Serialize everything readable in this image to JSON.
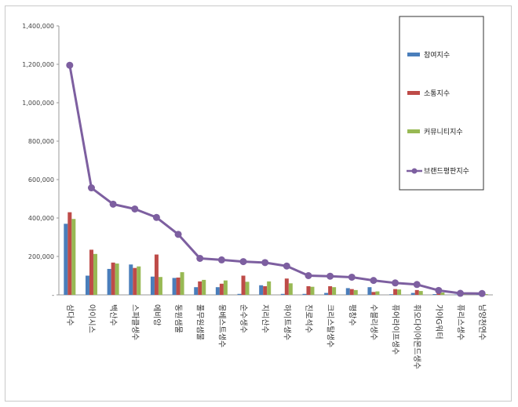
{
  "chart_data": {
    "type": "bar",
    "title": "",
    "xlabel": "",
    "ylabel": "",
    "ylim": [
      0,
      1400000
    ],
    "yticks": [
      0,
      200000,
      400000,
      600000,
      800000,
      1000000,
      1200000,
      1400000
    ],
    "ytick_labels": [
      "-",
      "200,000",
      "400,000",
      "600,000",
      "800,000",
      "1,000,000",
      "1,200,000",
      "1,400,000"
    ],
    "grid": false,
    "legend_position": "top-right",
    "categories": [
      "삼다수",
      "아이시스",
      "백산수",
      "스파클생수",
      "에비앙",
      "동원샘물",
      "풀무원샘물",
      "몽베스트생수",
      "순수생수",
      "지리산수",
      "하이트생수",
      "진로석수",
      "크리스탈생수",
      "평창수",
      "수블리생수",
      "퓨어라이프생수",
      "휘오다이아몬드생수",
      "가야G워터",
      "퓨리스생수",
      "남양천연수"
    ],
    "series": [
      {
        "name": "참여지수",
        "type": "bar",
        "color": "#4a7ebb",
        "values": [
          370000,
          100000,
          135000,
          158000,
          95000,
          88000,
          40000,
          40000,
          5000,
          50000,
          5000,
          5000,
          10000,
          35000,
          40000,
          3000,
          10000,
          4000,
          2000,
          2000
        ]
      },
      {
        "name": "소통지수",
        "type": "bar",
        "color": "#be4b48",
        "values": [
          430000,
          235000,
          168000,
          140000,
          210000,
          90000,
          70000,
          58000,
          100000,
          45000,
          85000,
          45000,
          45000,
          30000,
          15000,
          30000,
          25000,
          10000,
          5000,
          3000
        ]
      },
      {
        "name": "커뮤니티지수",
        "type": "bar",
        "color": "#98b954",
        "values": [
          395000,
          213000,
          163000,
          148000,
          93000,
          118000,
          78000,
          75000,
          68000,
          70000,
          60000,
          42000,
          40000,
          25000,
          18000,
          28000,
          20000,
          12000,
          8000,
          4000
        ]
      },
      {
        "name": "브랜드평판지수",
        "type": "line",
        "color": "#7d5fa0",
        "values": [
          1195000,
          557000,
          472000,
          447000,
          403000,
          315000,
          190000,
          182000,
          173000,
          168000,
          150000,
          100000,
          97000,
          92000,
          75000,
          62000,
          54000,
          23000,
          8000,
          7000
        ]
      }
    ]
  }
}
